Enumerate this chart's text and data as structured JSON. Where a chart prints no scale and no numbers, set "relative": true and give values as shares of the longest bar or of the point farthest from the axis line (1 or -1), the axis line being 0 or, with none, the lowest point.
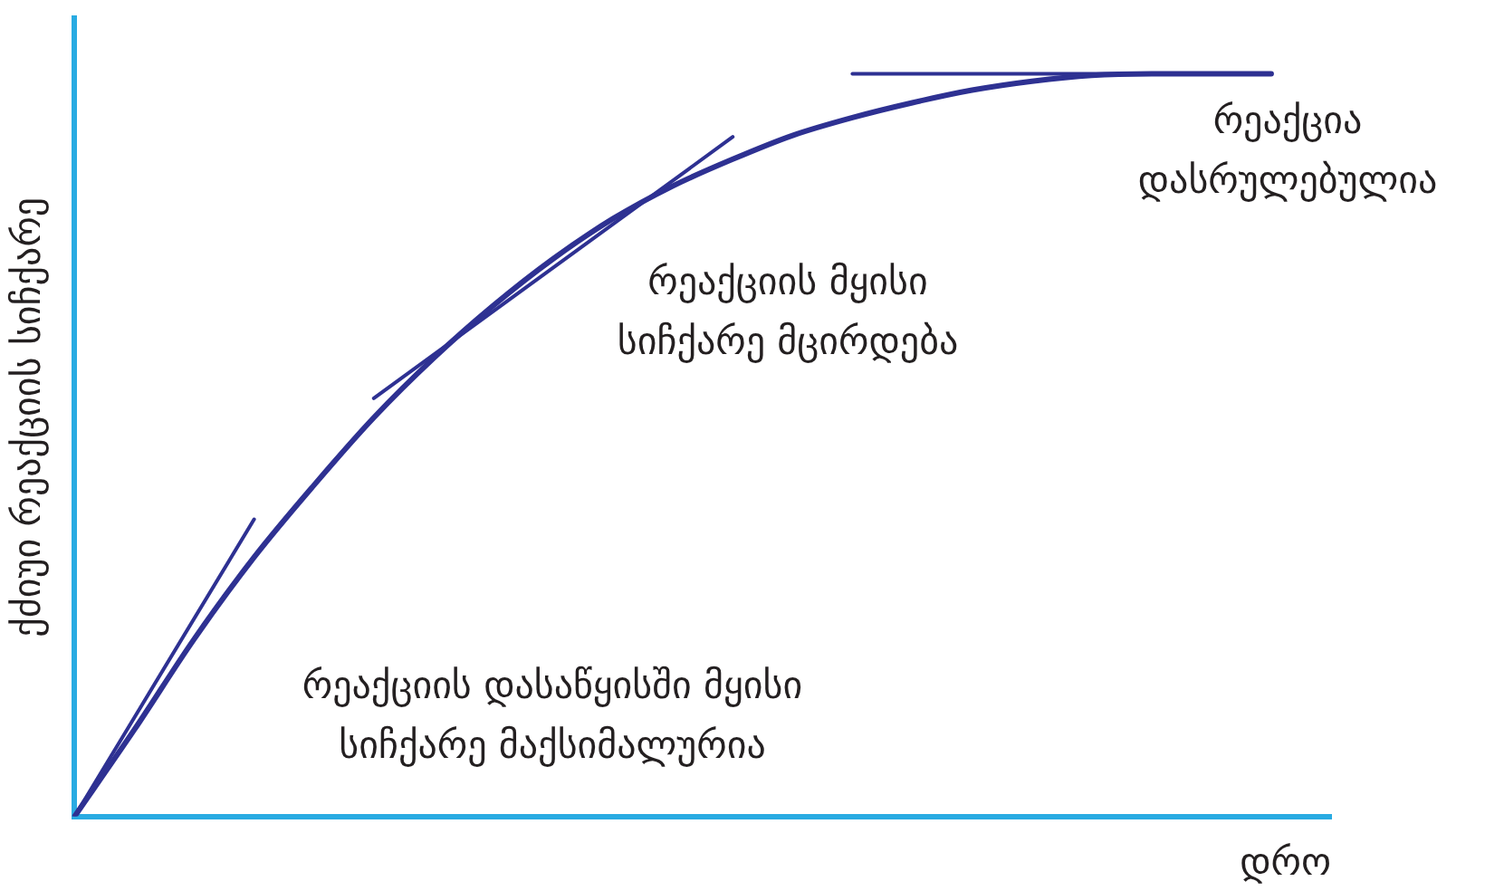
{
  "chart_data": {
    "type": "line",
    "relative": true,
    "xlabel": "დრო",
    "ylabel": "ქძიუი რეაქციის სიჩქარე",
    "categories": [
      null,
      null,
      null,
      null,
      null,
      null,
      null,
      null,
      null,
      null,
      null,
      null,
      null,
      null,
      null,
      null,
      null,
      null,
      null,
      null,
      null,
      null
    ],
    "series": [
      {
        "color": "#2e3192",
        "values": [
          0,
          0.117,
          0.239,
          0.349,
          0.446,
          0.537,
          0.617,
          0.688,
          0.751,
          0.805,
          0.849,
          0.885,
          0.917,
          0.941,
          0.961,
          0.978,
          0.99,
          0.998,
          1,
          1,
          1,
          null
        ]
      },
      {
        "color": "#2e3192",
        "values": [
          0,
          null,
          null,
          0.4,
          null,
          null,
          null,
          null,
          null,
          null,
          null,
          null,
          null,
          null,
          null,
          null,
          null,
          null,
          null,
          null,
          null,
          null
        ]
      },
      {
        "color": "#2e3192",
        "values": [
          null,
          null,
          null,
          null,
          null,
          0.563,
          null,
          null,
          null,
          null,
          null,
          0.915,
          null,
          null,
          null,
          null,
          null,
          null,
          null,
          null,
          null,
          null
        ]
      },
      {
        "color": "#2e3192",
        "values": [
          null,
          null,
          null,
          null,
          null,
          null,
          null,
          null,
          null,
          null,
          null,
          null,
          null,
          1,
          null,
          null,
          null,
          null,
          null,
          null,
          1,
          null
        ]
      }
    ],
    "annotations": [
      "რეაქცია\nდასრულებულია",
      "რეაქციის მყისი\nსიჩქარე მცირდება",
      "რეაქციის დასაწყისში მყისი\nსიჩქარე მაქსიმალურია"
    ],
    "legend": false,
    "marker": "none",
    "line_style": "solid"
  }
}
